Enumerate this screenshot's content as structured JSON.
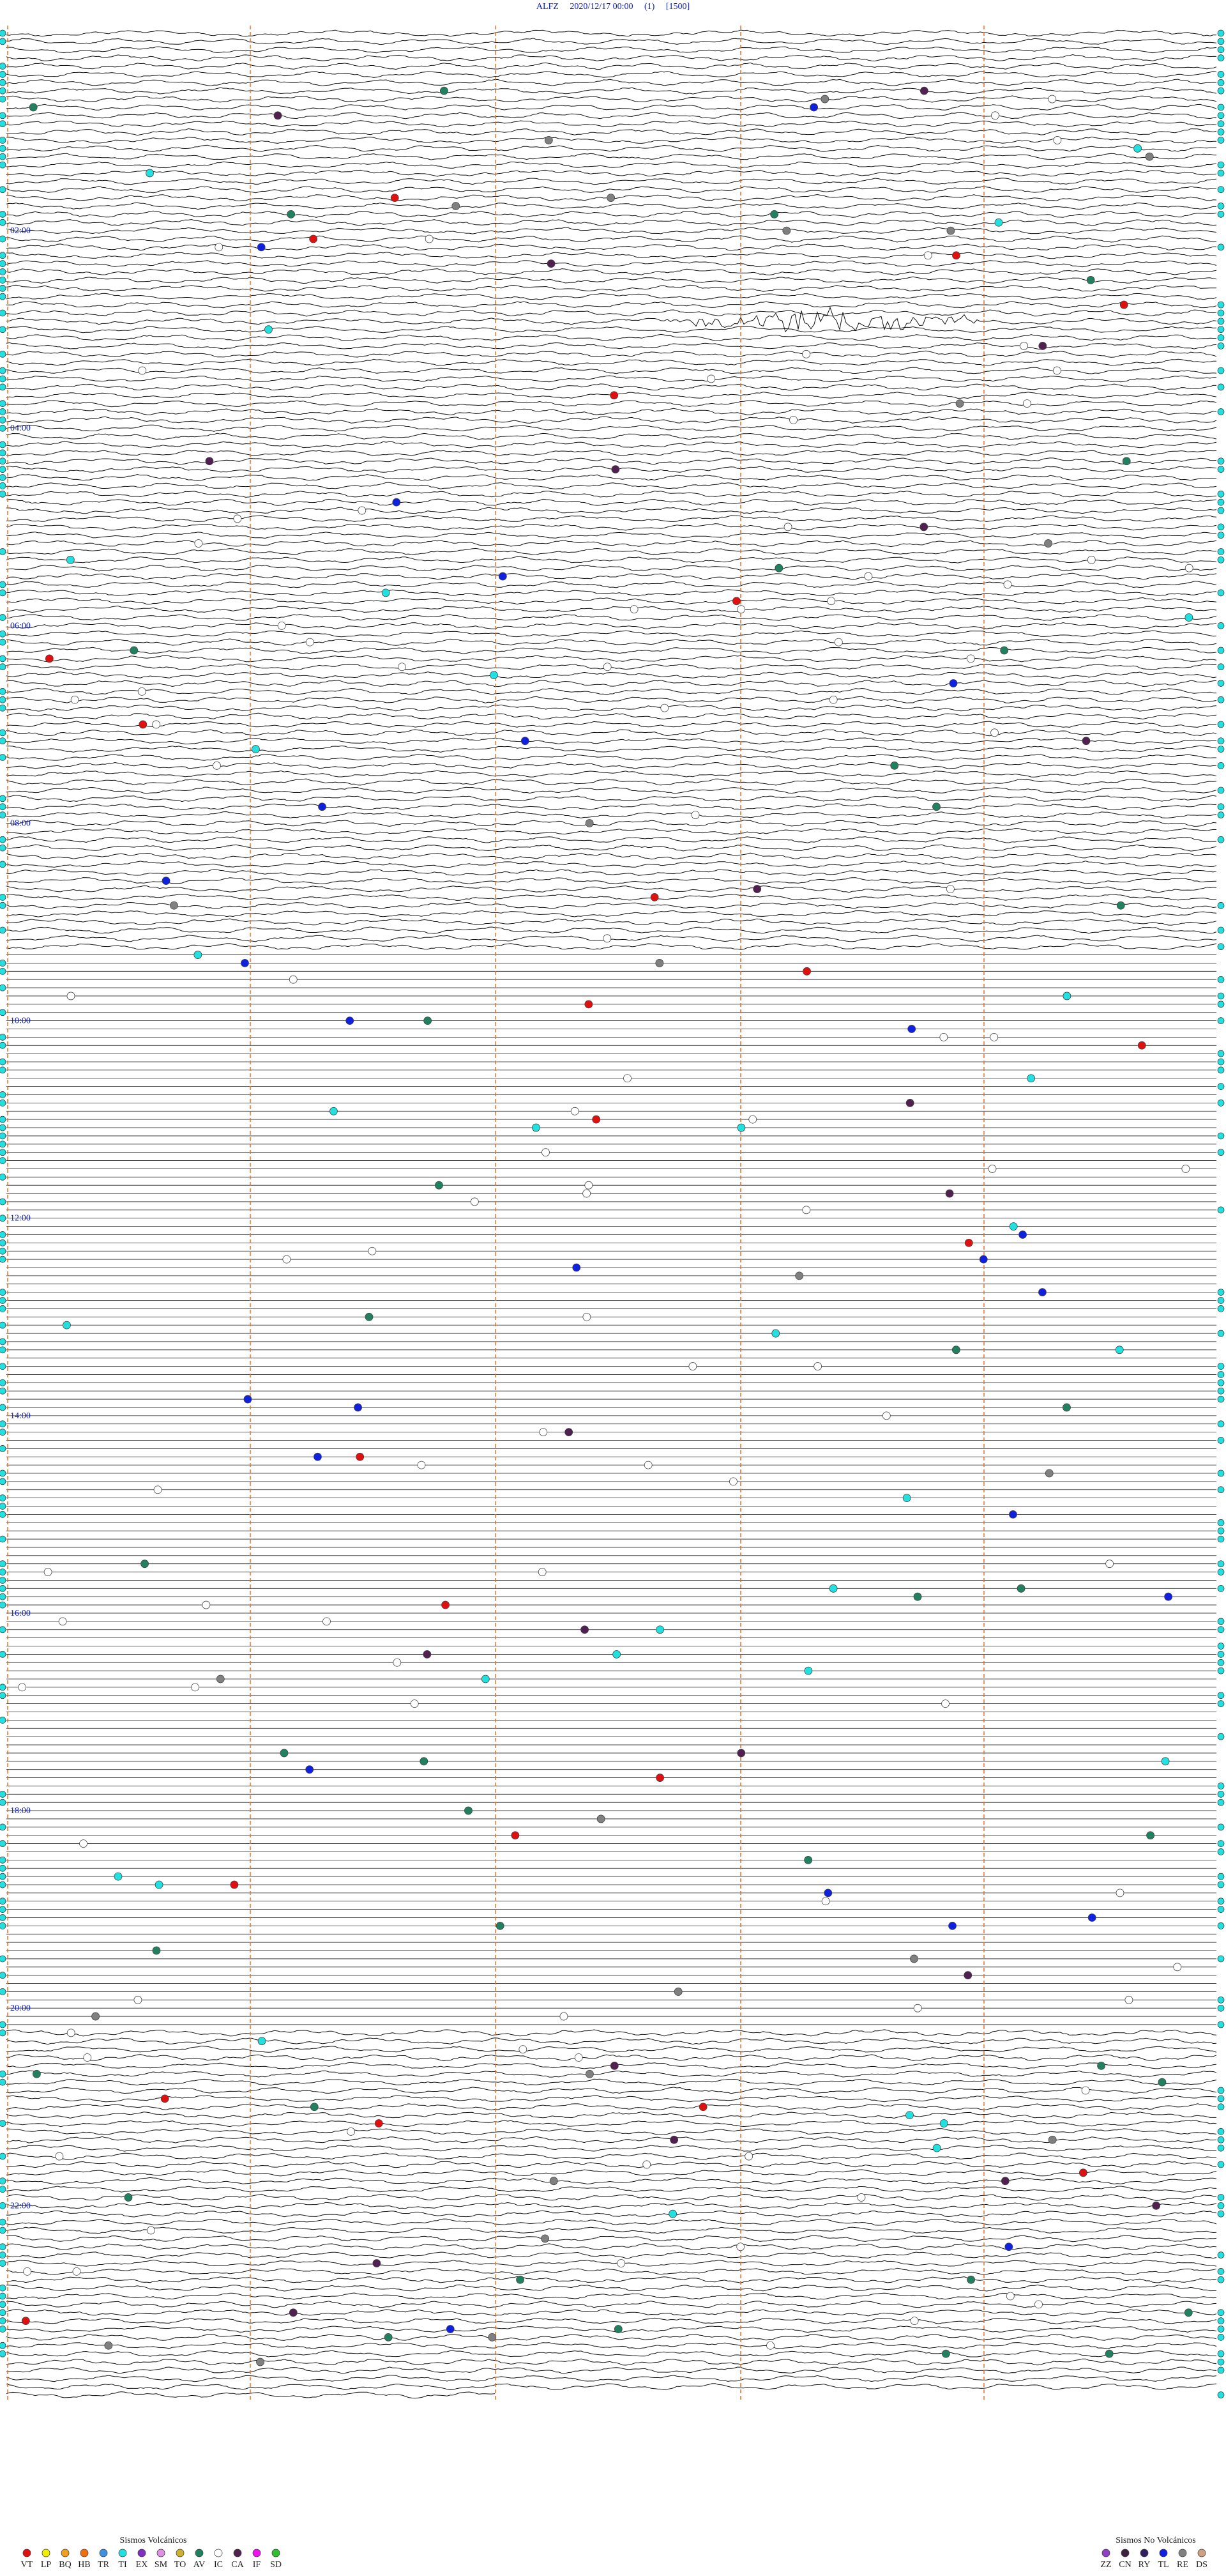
{
  "header": {
    "title": "ALFZ     2020/12/17 00:00     (1)     [1500]"
  },
  "time_labels": [
    "02:00",
    "04:00",
    "06:00",
    "08:00",
    "10:00",
    "12:00",
    "14:00",
    "16:00",
    "18:00",
    "20:00",
    "22:00"
  ],
  "legend": [
    {
      "title": "Sismos Volcánicos",
      "items": [
        {
          "code": "VT",
          "color": "#e01010"
        },
        {
          "code": "LP",
          "color": "#f0f000"
        },
        {
          "code": "BQ",
          "color": "#f0a020"
        },
        {
          "code": "HB",
          "color": "#f07010"
        },
        {
          "code": "TR",
          "color": "#4090e0"
        },
        {
          "code": "TI",
          "color": "#20e0e0"
        },
        {
          "code": "EX",
          "color": "#8030c0"
        },
        {
          "code": "SM",
          "color": "#e090e0"
        },
        {
          "code": "TO",
          "color": "#d0b030"
        },
        {
          "code": "AV",
          "color": "#208060"
        },
        {
          "code": "IC",
          "color": "#ffffff"
        },
        {
          "code": "CA",
          "color": "#502050"
        },
        {
          "code": "IF",
          "color": "#f010f0"
        },
        {
          "code": "SD",
          "color": "#30c030"
        }
      ]
    },
    {
      "title": "Sismos No Volcánicos",
      "items": [
        {
          "code": "ZZ",
          "color": "#9040c0"
        },
        {
          "code": "CN",
          "color": "#402040"
        },
        {
          "code": "RY",
          "color": "#302060"
        },
        {
          "code": "TL",
          "color": "#1020e0"
        },
        {
          "code": "RE",
          "color": "#808080"
        },
        {
          "code": "DS",
          "color": "#d0a080"
        }
      ]
    }
  ]
}
